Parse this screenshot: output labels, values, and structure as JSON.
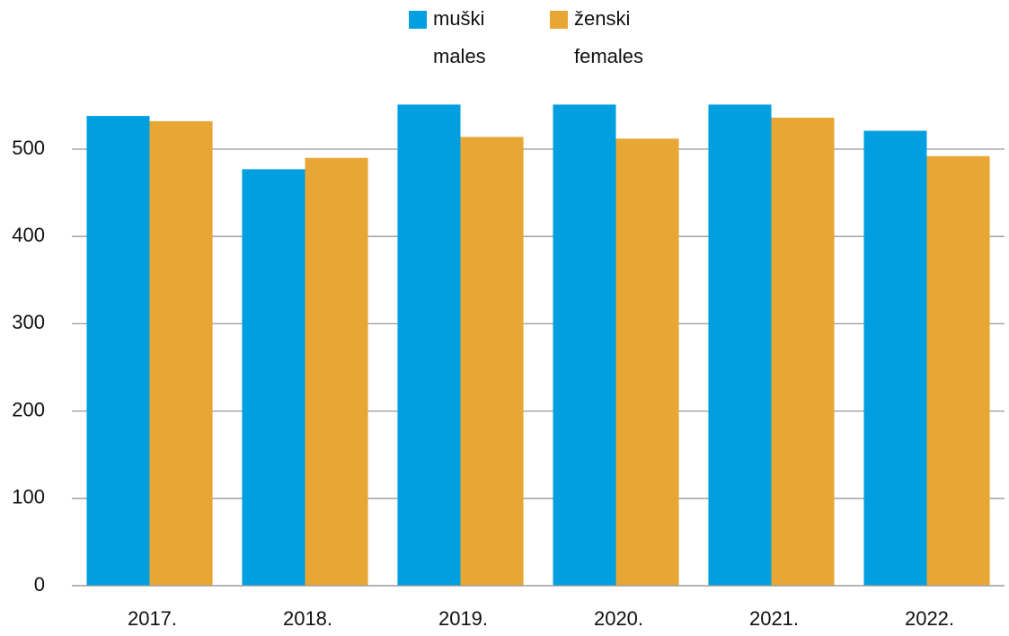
{
  "chart_data": {
    "type": "bar",
    "categories": [
      "2017.",
      "2018.",
      "2019.",
      "2020.",
      "2021.",
      "2022."
    ],
    "series": [
      {
        "name": "muški\nmales",
        "color": "#00a0e0",
        "values": [
          538,
          477,
          551,
          551,
          551,
          521
        ]
      },
      {
        "name": "ženski\nfemales",
        "color": "#e8a735",
        "values": [
          532,
          490,
          514,
          512,
          536,
          492
        ]
      }
    ],
    "ylim": [
      0,
      560
    ],
    "yticks": [
      0,
      100,
      200,
      300,
      400,
      500
    ],
    "grid": true,
    "legend": "top"
  }
}
